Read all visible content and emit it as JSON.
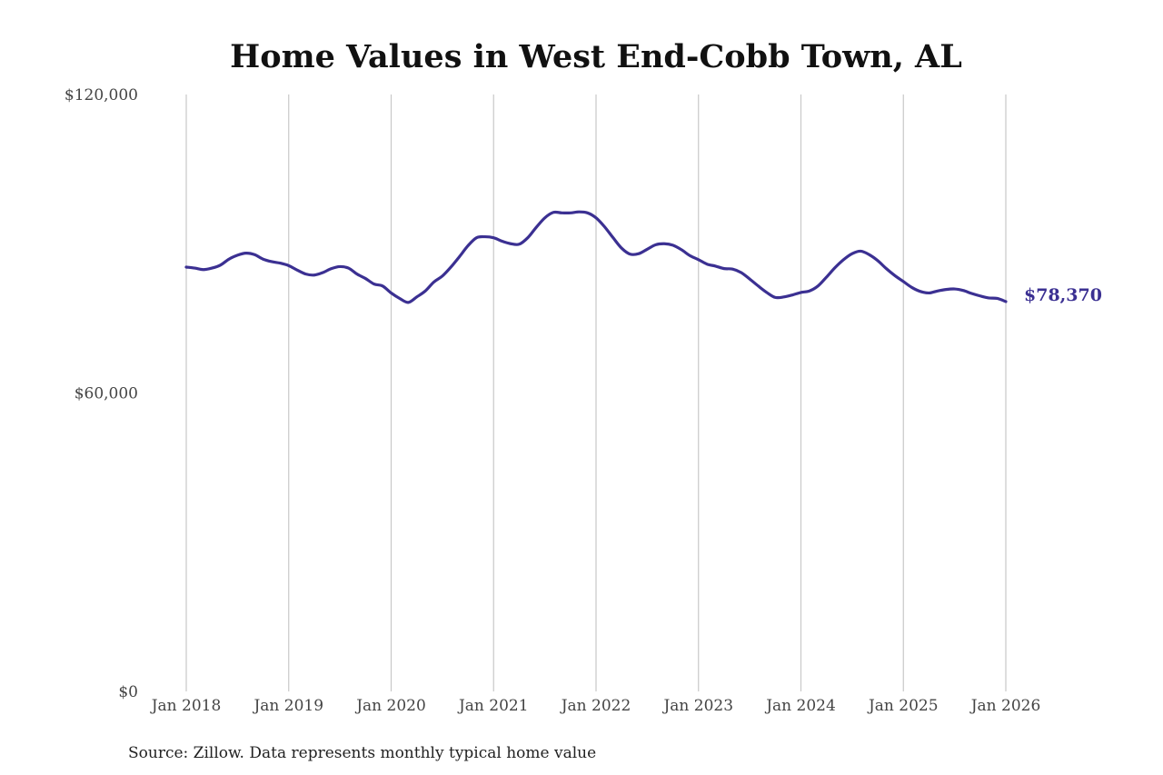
{
  "chart_data": {
    "type": "line",
    "title": "Home Values in West End-Cobb Town, AL",
    "source_note": "Source: Zillow. Data represents monthly typical home value",
    "ylim": [
      0,
      120000
    ],
    "yticks": [
      {
        "value": 0,
        "label": "$0"
      },
      {
        "value": 60000,
        "label": "$60,000"
      },
      {
        "value": 120000,
        "label": "$120,000"
      }
    ],
    "xlim": [
      "2018-01",
      "2026-01"
    ],
    "xticks": [
      {
        "date": "2018-01",
        "label": "Jan 2018"
      },
      {
        "date": "2019-01",
        "label": "Jan 2019"
      },
      {
        "date": "2020-01",
        "label": "Jan 2020"
      },
      {
        "date": "2021-01",
        "label": "Jan 2021"
      },
      {
        "date": "2022-01",
        "label": "Jan 2022"
      },
      {
        "date": "2023-01",
        "label": "Jan 2023"
      },
      {
        "date": "2024-01",
        "label": "Jan 2024"
      },
      {
        "date": "2025-01",
        "label": "Jan 2025"
      },
      {
        "date": "2026-01",
        "label": "Jan 2026"
      }
    ],
    "grid": "vertical",
    "line_color": "#3b3092",
    "end_label": "$78,370",
    "series": [
      {
        "x": [
          "2018-01",
          "2018-02",
          "2018-03",
          "2018-04",
          "2018-05",
          "2018-06",
          "2018-07",
          "2018-08",
          "2018-09",
          "2018-10",
          "2018-11",
          "2018-12",
          "2019-01",
          "2019-02",
          "2019-03",
          "2019-04",
          "2019-05",
          "2019-06",
          "2019-07",
          "2019-08",
          "2019-09",
          "2019-10",
          "2019-11",
          "2019-12",
          "2020-01",
          "2020-02",
          "2020-03",
          "2020-04",
          "2020-05",
          "2020-06",
          "2020-07",
          "2020-08",
          "2020-09",
          "2020-10",
          "2020-11",
          "2020-12",
          "2021-01",
          "2021-02",
          "2021-03",
          "2021-04",
          "2021-05",
          "2021-06",
          "2021-07",
          "2021-08",
          "2021-09",
          "2021-10",
          "2021-11",
          "2021-12",
          "2022-01",
          "2022-02",
          "2022-03",
          "2022-04",
          "2022-05",
          "2022-06",
          "2022-07",
          "2022-08",
          "2022-09",
          "2022-10",
          "2022-11",
          "2022-12",
          "2023-01",
          "2023-02",
          "2023-03",
          "2023-04",
          "2023-05",
          "2023-06",
          "2023-07",
          "2023-08",
          "2023-09",
          "2023-10",
          "2023-11",
          "2023-12",
          "2024-01",
          "2024-02",
          "2024-03",
          "2024-04",
          "2024-05",
          "2024-06",
          "2024-07",
          "2024-08",
          "2024-09",
          "2024-10",
          "2024-11",
          "2024-12",
          "2025-01",
          "2025-02",
          "2025-03",
          "2025-04",
          "2025-05",
          "2025-06",
          "2025-07",
          "2025-08",
          "2025-09",
          "2025-10",
          "2025-11",
          "2025-12",
          "2026-01"
        ],
        "values": [
          85300,
          85100,
          84800,
          85100,
          85700,
          86900,
          87700,
          88100,
          87800,
          86900,
          86400,
          86100,
          85600,
          84700,
          83900,
          83700,
          84200,
          85000,
          85400,
          85100,
          83900,
          83000,
          81900,
          81500,
          80100,
          79000,
          78200,
          79300,
          80500,
          82300,
          83500,
          85300,
          87400,
          89600,
          91200,
          91400,
          91200,
          90500,
          90000,
          89900,
          91200,
          93300,
          95200,
          96300,
          96200,
          96200,
          96400,
          96200,
          95200,
          93400,
          91200,
          89100,
          87900,
          88000,
          88900,
          89800,
          90000,
          89700,
          88800,
          87600,
          86800,
          85900,
          85500,
          85000,
          84900,
          84200,
          82900,
          81500,
          80200,
          79200,
          79300,
          79700,
          80200,
          80500,
          81500,
          83300,
          85200,
          86800,
          88000,
          88500,
          87800,
          86600,
          85000,
          83600,
          82400,
          81200,
          80400,
          80100,
          80500,
          80800,
          80900,
          80600,
          80000,
          79500,
          79100,
          79000,
          78370
        ]
      }
    ]
  }
}
